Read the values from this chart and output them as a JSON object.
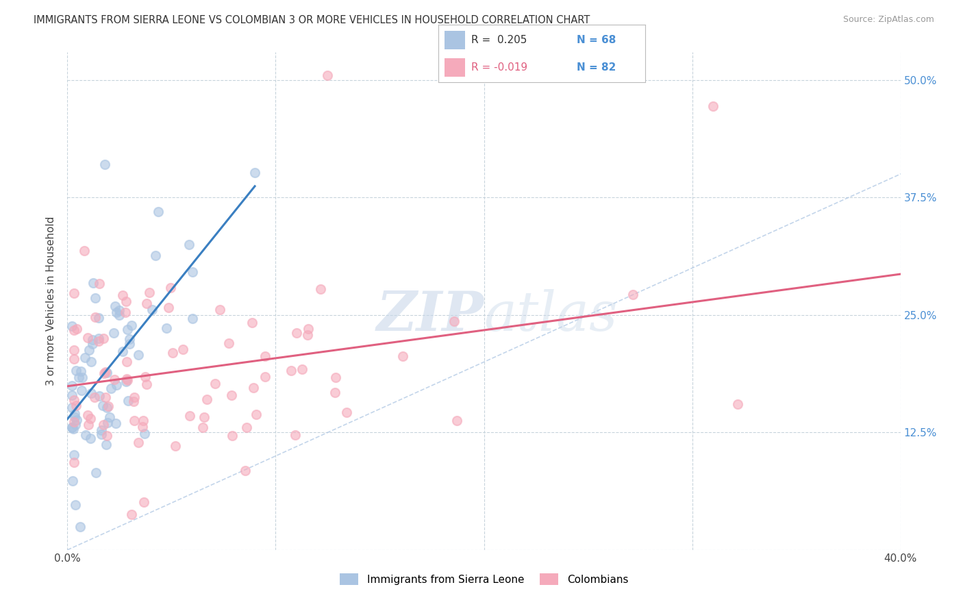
{
  "title": "IMMIGRANTS FROM SIERRA LEONE VS COLOMBIAN 3 OR MORE VEHICLES IN HOUSEHOLD CORRELATION CHART",
  "source": "Source: ZipAtlas.com",
  "ylabel": "3 or more Vehicles in Household",
  "xlim": [
    0.0,
    0.4
  ],
  "ylim": [
    0.0,
    0.53
  ],
  "xtick_vals": [
    0.0,
    0.1,
    0.2,
    0.3,
    0.4
  ],
  "xtick_labels": [
    "0.0%",
    "",
    "",
    "",
    "40.0%"
  ],
  "ytick_vals": [
    0.0,
    0.125,
    0.25,
    0.375,
    0.5
  ],
  "ytick_labels": [
    "",
    "12.5%",
    "25.0%",
    "37.5%",
    "50.0%"
  ],
  "sierra_leone_R": 0.205,
  "sierra_leone_N": 68,
  "colombian_R": -0.019,
  "colombian_N": 82,
  "sierra_leone_color": "#aac4e2",
  "colombian_color": "#f5aabb",
  "sierra_leone_line_color": "#3a7fc1",
  "colombian_line_color": "#e06080",
  "diagonal_color": "#aac4e2",
  "watermark_zip": "ZIP",
  "watermark_atlas": "atlas",
  "legend_R1": "R =  0.205",
  "legend_N1": "N = 68",
  "legend_R2": "R = -0.019",
  "legend_N2": "N = 82",
  "bottom_label1": "Immigrants from Sierra Leone",
  "bottom_label2": "Colombians"
}
